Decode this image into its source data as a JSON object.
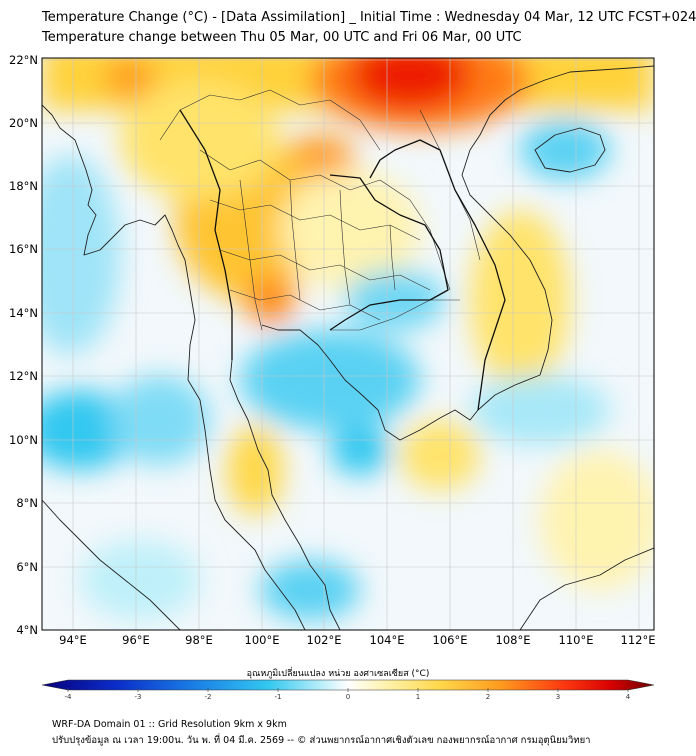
{
  "header": {
    "title_line1": "Temperature Change (°C) - [Data Assimilation] _ Initial Time : Wednesday 04 Mar, 12 UTC FCST+024",
    "title_line2": "Temperature change between Thu 05 Mar, 00 UTC and Fri 06 Mar, 00 UTC"
  },
  "map": {
    "lat_labels": [
      "22°N",
      "20°N",
      "18°N",
      "16°N",
      "14°N",
      "12°N",
      "10°N",
      "8°N",
      "6°N",
      "4°N"
    ],
    "lon_labels": [
      "94°E",
      "96°E",
      "98°E",
      "100°E",
      "102°E",
      "104°E",
      "106°E",
      "108°E",
      "110°E",
      "112°E"
    ],
    "extent": {
      "lon_min": 93,
      "lon_max": 112.5,
      "lat_min": 4,
      "lat_max": 22.2
    }
  },
  "colorbar": {
    "title": "อุณหภูมิเปลี่ยนแปลง หน่วย องศาเซลเซียส (°C)",
    "min": -4,
    "max": 4,
    "ticks": [
      "-4",
      "-3",
      "-2",
      "-1",
      "0",
      "1",
      "2",
      "3",
      "4"
    ],
    "colors": [
      "#08007a",
      "#0a2cc8",
      "#1a7fe6",
      "#33c8f0",
      "#bff0fa",
      "#ffffff",
      "#fff3b0",
      "#ffd84a",
      "#ff9a1f",
      "#ff3a10",
      "#d80000",
      "#6a0000"
    ]
  },
  "footer": {
    "line1": "WRF-DA Domain 01 :: Grid Resolution 9km x 9km",
    "line2": "ปรับปรุงข้อมูล ณ เวลา 19:00น. วัน พ. ที่ 04 มี.ค. 2569 -- © ส่วนพยากรณ์อากาศเชิงตัวเลข กองพยากรณ์อากาศ กรมอุตุนิยมวิทยา"
  }
}
